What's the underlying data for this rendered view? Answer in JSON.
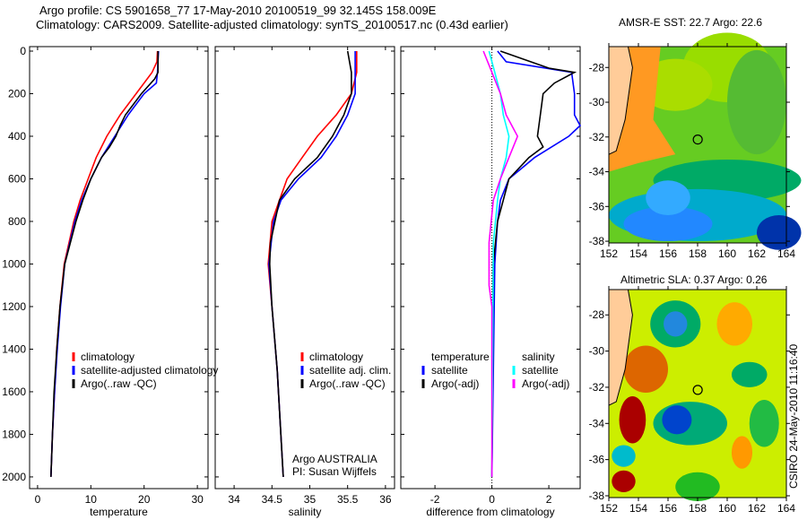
{
  "title": {
    "line1": "Argo profile: CS 5901658_77 17-May-2010 20100519_99 32.145S 158.009E",
    "line2": "Climatology: CARS2009. Satellite-adjusted climatology: synTS_20100517.nc (0.43d earlier)"
  },
  "colors": {
    "climatology": "#ff0000",
    "satellite": "#0000ff",
    "argo": "#000000",
    "sal_satellite": "#00ffff",
    "sal_argo": "#ff00ff"
  },
  "chart_data": [
    {
      "type": "line",
      "xlabel": "temperature",
      "xlim": [
        -1.5,
        32
      ],
      "ylim": [
        -21,
        2055
      ],
      "xticks": [
        0,
        10,
        20,
        30
      ],
      "yticks": [
        0,
        200,
        400,
        600,
        800,
        1000,
        1200,
        1400,
        1600,
        1800,
        2000
      ],
      "ylabel": "",
      "legend": [
        "climatology",
        "satellite-adjusted climatology",
        "Argo(..raw -QC)"
      ],
      "series": [
        {
          "name": "climatology",
          "color": "#ff0000",
          "depth": [
            0,
            50,
            100,
            200,
            300,
            400,
            500,
            600,
            700,
            800,
            1000,
            1200,
            1400,
            1600,
            1800,
            2000
          ],
          "values": [
            22.5,
            22.4,
            21.5,
            18.5,
            15.5,
            13,
            11,
            9.5,
            8,
            6.8,
            5,
            4.2,
            3.6,
            3.2,
            2.8,
            2.5
          ]
        },
        {
          "name": "satellite-adjusted climatology",
          "color": "#0000ff",
          "depth": [
            0,
            100,
            150,
            200,
            300,
            400,
            500,
            600,
            700,
            800,
            1000,
            1200,
            1400,
            1600,
            1800,
            2000
          ],
          "values": [
            22.7,
            22.5,
            22.3,
            20,
            17,
            14.5,
            12,
            10,
            8.3,
            7,
            5.1,
            4.3,
            3.7,
            3.2,
            2.8,
            2.5
          ]
        },
        {
          "name": "Argo(..raw -QC)",
          "color": "#000000",
          "depth": [
            0,
            100,
            130,
            200,
            300,
            350,
            400,
            450,
            500,
            600,
            700,
            800,
            1000,
            1200,
            1400,
            1600,
            1800,
            2000
          ],
          "values": [
            22.6,
            22.6,
            22,
            19.5,
            16.5,
            15.5,
            14.7,
            13.5,
            12,
            10,
            8.5,
            7.2,
            5.1,
            4.2,
            3.6,
            3.1,
            2.8,
            2.5
          ]
        }
      ]
    },
    {
      "type": "line",
      "xlabel": "salinity",
      "xlim": [
        33.75,
        36.12
      ],
      "ylim": [
        -21,
        2055
      ],
      "xticks": [
        34,
        34.5,
        35,
        35.5,
        36
      ],
      "legend": [
        "climatology",
        "satellite adj. clim.",
        "Argo(..raw -QC)"
      ],
      "annotation": [
        "Argo AUSTRALIA",
        "PI: Susan Wijffels"
      ],
      "series": [
        {
          "name": "climatology",
          "color": "#ff0000",
          "depth": [
            0,
            100,
            200,
            300,
            400,
            500,
            600,
            700,
            800,
            1000,
            1200,
            1500,
            2000
          ],
          "values": [
            35.62,
            35.62,
            35.55,
            35.35,
            35.1,
            34.9,
            34.7,
            34.6,
            34.5,
            34.45,
            34.5,
            34.57,
            34.65
          ]
        },
        {
          "name": "satellite adj. clim.",
          "color": "#0000ff",
          "depth": [
            0,
            200,
            300,
            400,
            500,
            600,
            700,
            800,
            1000,
            1200,
            1500,
            2000
          ],
          "values": [
            35.6,
            35.6,
            35.5,
            35.35,
            35.15,
            34.85,
            34.62,
            34.52,
            34.46,
            34.5,
            34.57,
            34.65
          ]
        },
        {
          "name": "Argo(..raw -QC)",
          "color": "#000000",
          "depth": [
            0,
            100,
            200,
            300,
            400,
            500,
            600,
            700,
            900,
            1000,
            1200,
            1500,
            2000
          ],
          "values": [
            35.5,
            35.55,
            35.55,
            35.45,
            35.3,
            35.1,
            34.8,
            34.6,
            34.48,
            34.47,
            34.5,
            34.57,
            34.65
          ]
        }
      ]
    },
    {
      "type": "line",
      "xlabel": "difference from climatology",
      "xlim": [
        -3.2,
        3.1
      ],
      "ylim": [
        -21,
        2055
      ],
      "xticks": [
        -2,
        0,
        2
      ],
      "legend_temperature": {
        "title": "temperature",
        "items": [
          "satellite",
          "Argo(-adj)"
        ]
      },
      "legend_salinity": {
        "title": "salinity",
        "items": [
          "satellite",
          "Argo(-adj)"
        ]
      },
      "series": [
        {
          "name": "temperature satellite",
          "color": "#0000ff",
          "depth": [
            0,
            50,
            100,
            200,
            300,
            350,
            400,
            500,
            600,
            700,
            800,
            1000,
            2000
          ],
          "values": [
            0.2,
            0.5,
            2.8,
            2.9,
            2.9,
            3.1,
            2.7,
            1.5,
            0.6,
            0.3,
            0.2,
            0.1,
            0
          ]
        },
        {
          "name": "temperature Argo(-adj)",
          "color": "#000000",
          "depth": [
            0,
            80,
            100,
            150,
            200,
            300,
            400,
            450,
            500,
            600,
            700,
            800,
            1000,
            2000
          ],
          "values": [
            0.3,
            2,
            2.9,
            2.2,
            1.8,
            1.7,
            1.6,
            1.8,
            1.3,
            0.6,
            0.4,
            0.2,
            0.05,
            0
          ]
        },
        {
          "name": "salinity satellite",
          "color": "#00ffff",
          "depth": [
            0,
            100,
            200,
            300,
            400,
            500,
            600,
            700,
            900,
            2000
          ],
          "values": [
            -0.1,
            0.1,
            0.3,
            0.4,
            0.6,
            0.5,
            0.3,
            0.2,
            0.05,
            0
          ]
        },
        {
          "name": "salinity Argo(-adj)",
          "color": "#ff00ff",
          "depth": [
            0,
            100,
            200,
            300,
            400,
            500,
            600,
            700,
            900,
            1100,
            1200,
            2000
          ],
          "values": [
            -0.3,
            0,
            0.3,
            0.5,
            0.9,
            0.6,
            0.3,
            0.05,
            -0.1,
            -0.1,
            0,
            0
          ]
        }
      ]
    },
    {
      "type": "heatmap",
      "title": "AMSR-E SST: 22.7 Argo: 22.6",
      "xticks": [
        152,
        154,
        156,
        158,
        160,
        162,
        164
      ],
      "yticks": [
        -28,
        -30,
        -32,
        -34,
        -36,
        -38
      ],
      "xlim": [
        152,
        164
      ],
      "ylim": [
        -38.1,
        -26.8
      ],
      "marker": [
        158.009,
        -32.145
      ]
    },
    {
      "type": "heatmap",
      "title": "Altimetric SLA: 0.37 Argo: 0.26",
      "xticks": [
        152,
        154,
        156,
        158,
        160,
        162,
        164
      ],
      "yticks": [
        -28,
        -30,
        -32,
        -34,
        -36,
        -38
      ],
      "xlim": [
        152,
        164
      ],
      "ylim": [
        -38.1,
        -26.6
      ],
      "marker": [
        158.009,
        -32.145
      ]
    }
  ],
  "credit": "CSIRO 24-May-2010 11:16:40"
}
